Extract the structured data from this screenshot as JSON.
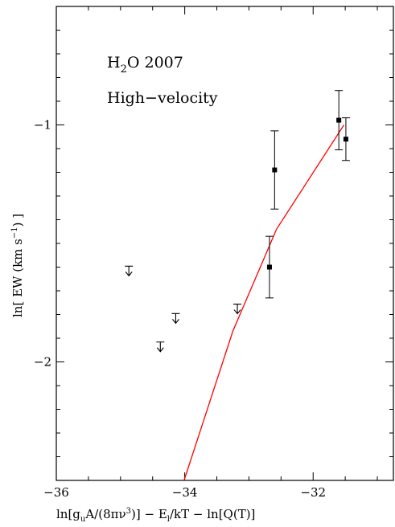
{
  "chart_data": {
    "type": "scatter",
    "annotations": {
      "species": {
        "main": "H",
        "sub": "2",
        "rest": "O 2007"
      },
      "component": "High−velocity"
    },
    "xlabel": "ln[g A/(8πν³)] − E/kT − ln[Q(T)]",
    "xlabel_parts": {
      "a": "ln[g",
      "u": "u",
      "b": "A/(8πν",
      "c": "3",
      "d": ")] − E",
      "l": "l",
      "e": "/kT − ln[Q(T)]"
    },
    "ylabel": "ln[ EW (km s⁻¹) ]",
    "ylabel_parts": {
      "a": "ln[ EW (km s",
      "sup": "−1",
      "b": ") ]"
    },
    "xlim": [
      -36,
      -30.75
    ],
    "ylim": [
      -2.5,
      -0.5
    ],
    "x_ticks": [
      {
        "v": -36,
        "label": "−36"
      },
      {
        "v": -34,
        "label": "−34"
      },
      {
        "v": -32,
        "label": "−32"
      }
    ],
    "x_minor_step": 0.5,
    "y_ticks": [
      {
        "v": -1,
        "label": "−1"
      },
      {
        "v": -2,
        "label": "−2"
      }
    ],
    "y_minor_step": 0.1,
    "series": [
      {
        "marker": "square",
        "points": [
          {
            "x": -32.68,
            "y": -1.6,
            "err": 0.13
          },
          {
            "x": -32.6,
            "y": -1.19,
            "err": 0.165
          },
          {
            "x": -31.6,
            "y": -0.98,
            "err": 0.125
          },
          {
            "x": -31.49,
            "y": -1.06,
            "err": 0.09
          }
        ]
      },
      {
        "marker": "upper-limit",
        "points": [
          {
            "x": -34.87,
            "y": -1.63
          },
          {
            "x": -34.38,
            "y": -1.95
          },
          {
            "x": -34.14,
            "y": -1.83
          },
          {
            "x": -33.18,
            "y": -1.79
          }
        ]
      },
      {
        "marker": "line",
        "color": "#ff0000",
        "points": [
          {
            "x": -34.01,
            "y": -2.5
          },
          {
            "x": -33.25,
            "y": -1.87
          },
          {
            "x": -32.57,
            "y": -1.44
          },
          {
            "x": -31.52,
            "y": -1.0
          }
        ]
      }
    ]
  }
}
